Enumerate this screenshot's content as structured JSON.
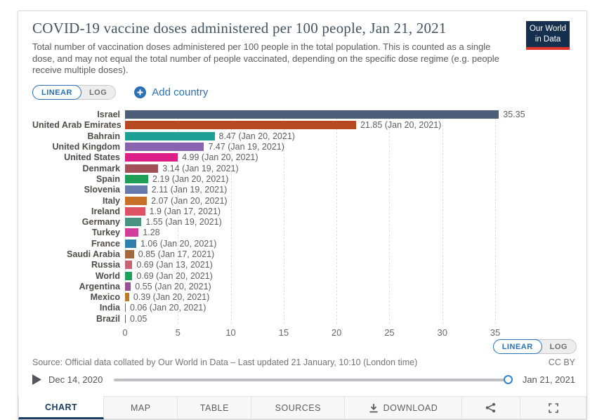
{
  "header": {
    "title": "COVID-19 vaccine doses administered per 100 people, Jan 21, 2021",
    "subtitle": "Total number of vaccination doses administered per 100 people in the total population. This is counted as a single dose, and may not equal the total number of people vaccinated, depending on the specific dose regime (e.g. people receive multiple doses).",
    "logo_line1": "Our World",
    "logo_line2": "in Data"
  },
  "controls": {
    "linear_label": "LINEAR",
    "log_label": "LOG",
    "add_country_label": "Add country"
  },
  "chart_data": {
    "type": "bar",
    "orientation": "horizontal",
    "title": "COVID-19 vaccine doses administered per 100 people, Jan 21, 2021",
    "xlabel": "",
    "ylabel": "",
    "xlim": [
      0,
      36.5
    ],
    "xticks": [
      0,
      5,
      10,
      15,
      20,
      25,
      30,
      35
    ],
    "grid": "vertical-dashed",
    "legend": "none",
    "rows": [
      {
        "label": "Israel",
        "value": 35.35,
        "display": "35.35",
        "color": "#4c5f78"
      },
      {
        "label": "United Arab Emirates",
        "value": 21.85,
        "display": "21.85 (Jan 20, 2021)",
        "color": "#b6491f"
      },
      {
        "label": "Bahrain",
        "value": 8.47,
        "display": "8.47 (Jan 20, 2021)",
        "color": "#1fa094"
      },
      {
        "label": "United Kingdom",
        "value": 7.47,
        "display": "7.47 (Jan 19, 2021)",
        "color": "#8a63b0"
      },
      {
        "label": "United States",
        "value": 4.99,
        "display": "4.99 (Jan 20, 2021)",
        "color": "#de1e86"
      },
      {
        "label": "Denmark",
        "value": 3.14,
        "display": "3.14 (Jan 19, 2021)",
        "color": "#a34f58"
      },
      {
        "label": "Spain",
        "value": 2.19,
        "display": "2.19 (Jan 20, 2021)",
        "color": "#219e55"
      },
      {
        "label": "Slovenia",
        "value": 2.11,
        "display": "2.11 (Jan 19, 2021)",
        "color": "#6879ae"
      },
      {
        "label": "Italy",
        "value": 2.07,
        "display": "2.07 (Jan 20, 2021)",
        "color": "#c56f29"
      },
      {
        "label": "Ireland",
        "value": 1.9,
        "display": "1.9 (Jan 17, 2021)",
        "color": "#db5365"
      },
      {
        "label": "Germany",
        "value": 1.55,
        "display": "1.55 (Jan 19, 2021)",
        "color": "#4a9182"
      },
      {
        "label": "Turkey",
        "value": 1.28,
        "display": "1.28",
        "color": "#d23c9c"
      },
      {
        "label": "France",
        "value": 1.06,
        "display": "1.06 (Jan 20, 2021)",
        "color": "#2e7eae"
      },
      {
        "label": "Saudi Arabia",
        "value": 0.85,
        "display": "0.85 (Jan 17, 2021)",
        "color": "#a5683c"
      },
      {
        "label": "Russia",
        "value": 0.69,
        "display": "0.69 (Jan 13, 2021)",
        "color": "#c96374"
      },
      {
        "label": "World",
        "value": 0.69,
        "display": "0.69 (Jan 20, 2021)",
        "color": "#19a35f"
      },
      {
        "label": "Argentina",
        "value": 0.55,
        "display": "0.55 (Jan 20, 2021)",
        "color": "#9a5090"
      },
      {
        "label": "Mexico",
        "value": 0.39,
        "display": "0.39 (Jan 20, 2021)",
        "color": "#be7a29"
      },
      {
        "label": "India",
        "value": 0.06,
        "display": "0.06 (Jan 20, 2021)",
        "color": "#5c6b7a"
      },
      {
        "label": "Brazil",
        "value": 0.05,
        "display": "0.05",
        "color": "#566474"
      }
    ]
  },
  "footer": {
    "source": "Source: Official data collated by Our World in Data – Last updated 21 January, 10:10 (London time)",
    "license": "CC BY"
  },
  "timeline": {
    "start_label": "Dec 14, 2020",
    "end_label": "Jan 21, 2021"
  },
  "tabs": [
    {
      "name": "chart",
      "label": "CHART",
      "active": true
    },
    {
      "name": "map",
      "label": "MAP"
    },
    {
      "name": "table",
      "label": "TABLE"
    },
    {
      "name": "sources",
      "label": "SOURCES"
    },
    {
      "name": "download",
      "label": "DOWNLOAD",
      "icon": "download"
    },
    {
      "name": "share",
      "label": "",
      "icon": "share"
    },
    {
      "name": "fullscreen",
      "label": "",
      "icon": "fullscreen"
    }
  ],
  "colors": {
    "accent_blue": "#2970b6",
    "navy": "#1d3d63",
    "logo_navy": "#15304f",
    "logo_red": "#de342c",
    "grid": "#e0e0e0"
  }
}
